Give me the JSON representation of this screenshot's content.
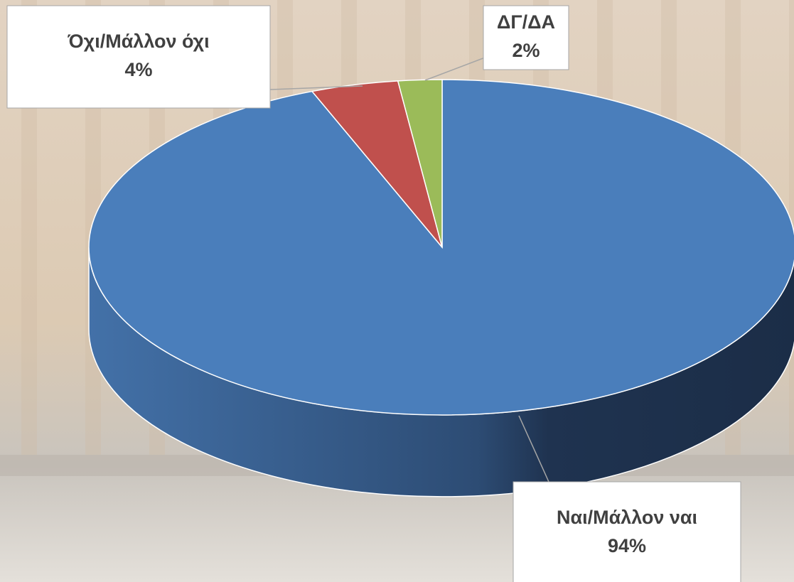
{
  "chart_data": {
    "type": "pie",
    "three_d": true,
    "categories": [
      "Ναι/Μάλλον ναι",
      "Όχι/Μάλλον όχι",
      "ΔΓ/ΔΑ"
    ],
    "values": [
      94,
      4,
      2
    ],
    "value_labels": [
      "94%",
      "4%",
      "2%"
    ],
    "colors": [
      "#4a7ebb",
      "#c0504d",
      "#9bbb59"
    ]
  }
}
